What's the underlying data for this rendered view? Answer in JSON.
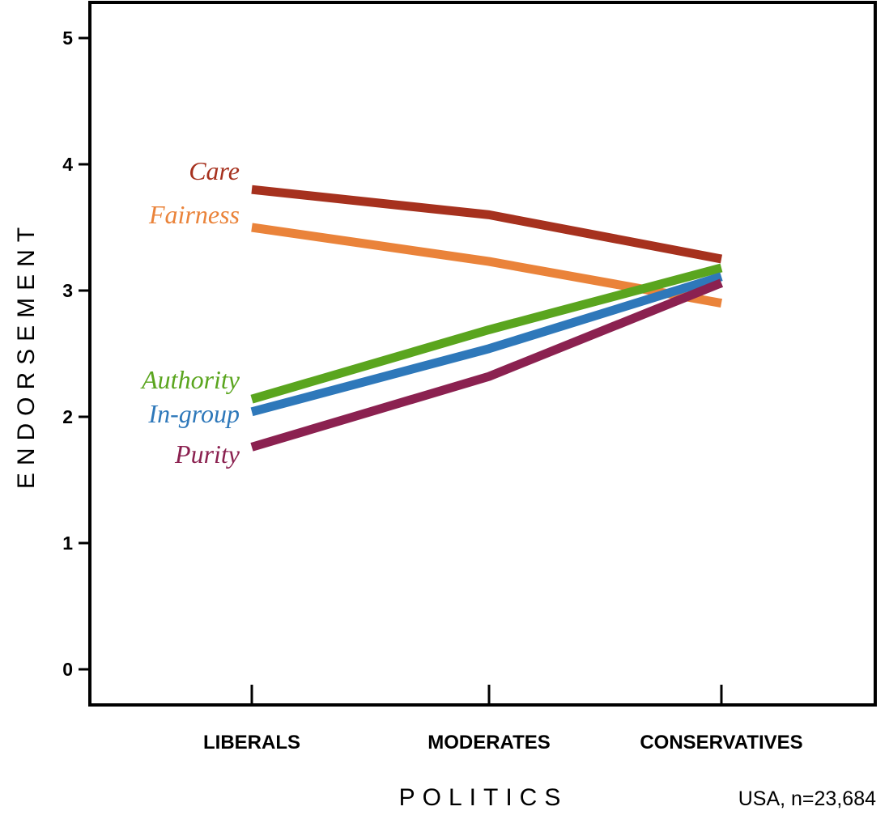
{
  "chart_data": {
    "type": "line",
    "categories": [
      "LIBERALS",
      "MODERATES",
      "CONSERVATIVES"
    ],
    "ylabel": "ENDORSEMENT",
    "xlabel": "POLITICS",
    "note": "USA, n=23,684",
    "ylim": [
      0,
      5
    ],
    "yticks": [
      "0",
      "1",
      "2",
      "3",
      "4",
      "5"
    ],
    "grid": false,
    "legend": "inline-left",
    "series": [
      {
        "name": "Care",
        "color": "#A6311E",
        "values": [
          3.8,
          3.6,
          3.25
        ]
      },
      {
        "name": "Fairness",
        "color": "#EA833A",
        "values": [
          3.5,
          3.23,
          2.9
        ]
      },
      {
        "name": "Authority",
        "color": "#5AA51E",
        "values": [
          2.14,
          2.69,
          3.18
        ]
      },
      {
        "name": "In-group",
        "color": "#2E78BA",
        "values": [
          2.04,
          2.54,
          3.11
        ]
      },
      {
        "name": "Purity",
        "color": "#8B2150",
        "values": [
          1.76,
          2.32,
          3.06
        ]
      }
    ]
  }
}
